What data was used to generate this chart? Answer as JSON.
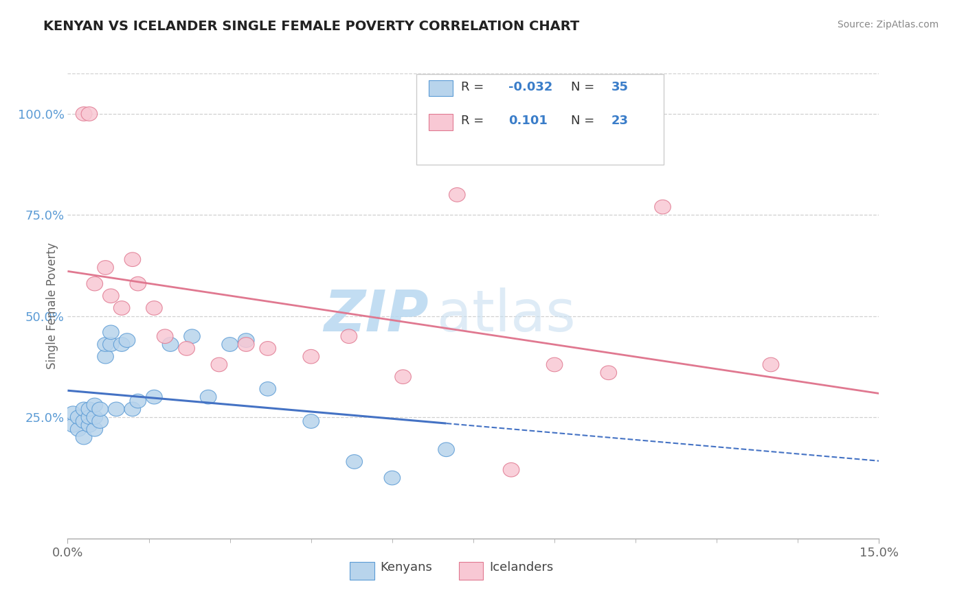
{
  "title": "KENYAN VS ICELANDER SINGLE FEMALE POVERTY CORRELATION CHART",
  "source": "Source: ZipAtlas.com",
  "ylabel": "Single Female Poverty",
  "xlim": [
    0.0,
    0.15
  ],
  "ylim": [
    -0.05,
    1.1
  ],
  "yticks": [
    0.25,
    0.5,
    0.75,
    1.0
  ],
  "ytick_labels": [
    "25.0%",
    "50.0%",
    "75.0%",
    "100.0%"
  ],
  "xtick_labels_show": [
    "0.0%",
    "15.0%"
  ],
  "legend_blue_r": "-0.032",
  "legend_blue_n": "35",
  "legend_pink_r": "0.101",
  "legend_pink_n": "23",
  "color_blue_fill": "#B8D4EC",
  "color_blue_edge": "#5B9BD5",
  "color_pink_fill": "#F8C8D4",
  "color_pink_edge": "#E07890",
  "color_blue_line": "#4472C4",
  "color_pink_line": "#E07890",
  "bg_color": "#ffffff",
  "grid_color": "#d0d0d0",
  "title_color": "#222222",
  "label_color": "#666666",
  "ytick_color": "#5B9BD5",
  "watermark_zip_color": "#C8DFF0",
  "watermark_atlas_color": "#C8DFF0",
  "kenyans_x": [
    0.001,
    0.001,
    0.002,
    0.002,
    0.003,
    0.003,
    0.003,
    0.004,
    0.004,
    0.004,
    0.005,
    0.005,
    0.005,
    0.006,
    0.006,
    0.007,
    0.007,
    0.008,
    0.008,
    0.009,
    0.01,
    0.011,
    0.012,
    0.013,
    0.016,
    0.019,
    0.023,
    0.026,
    0.03,
    0.033,
    0.037,
    0.045,
    0.053,
    0.06,
    0.07
  ],
  "kenyans_y": [
    0.23,
    0.26,
    0.22,
    0.25,
    0.2,
    0.24,
    0.27,
    0.23,
    0.25,
    0.27,
    0.22,
    0.25,
    0.28,
    0.24,
    0.27,
    0.4,
    0.43,
    0.43,
    0.46,
    0.27,
    0.43,
    0.44,
    0.27,
    0.29,
    0.3,
    0.43,
    0.45,
    0.3,
    0.43,
    0.44,
    0.32,
    0.24,
    0.14,
    0.1,
    0.17
  ],
  "icelanders_x": [
    0.003,
    0.004,
    0.005,
    0.007,
    0.008,
    0.01,
    0.012,
    0.013,
    0.016,
    0.018,
    0.022,
    0.028,
    0.033,
    0.037,
    0.045,
    0.052,
    0.062,
    0.072,
    0.082,
    0.09,
    0.1,
    0.11,
    0.13
  ],
  "icelanders_y": [
    1.0,
    1.0,
    0.58,
    0.62,
    0.55,
    0.52,
    0.64,
    0.58,
    0.52,
    0.45,
    0.42,
    0.38,
    0.43,
    0.42,
    0.4,
    0.45,
    0.35,
    0.8,
    0.12,
    0.38,
    0.36,
    0.77,
    0.38
  ]
}
